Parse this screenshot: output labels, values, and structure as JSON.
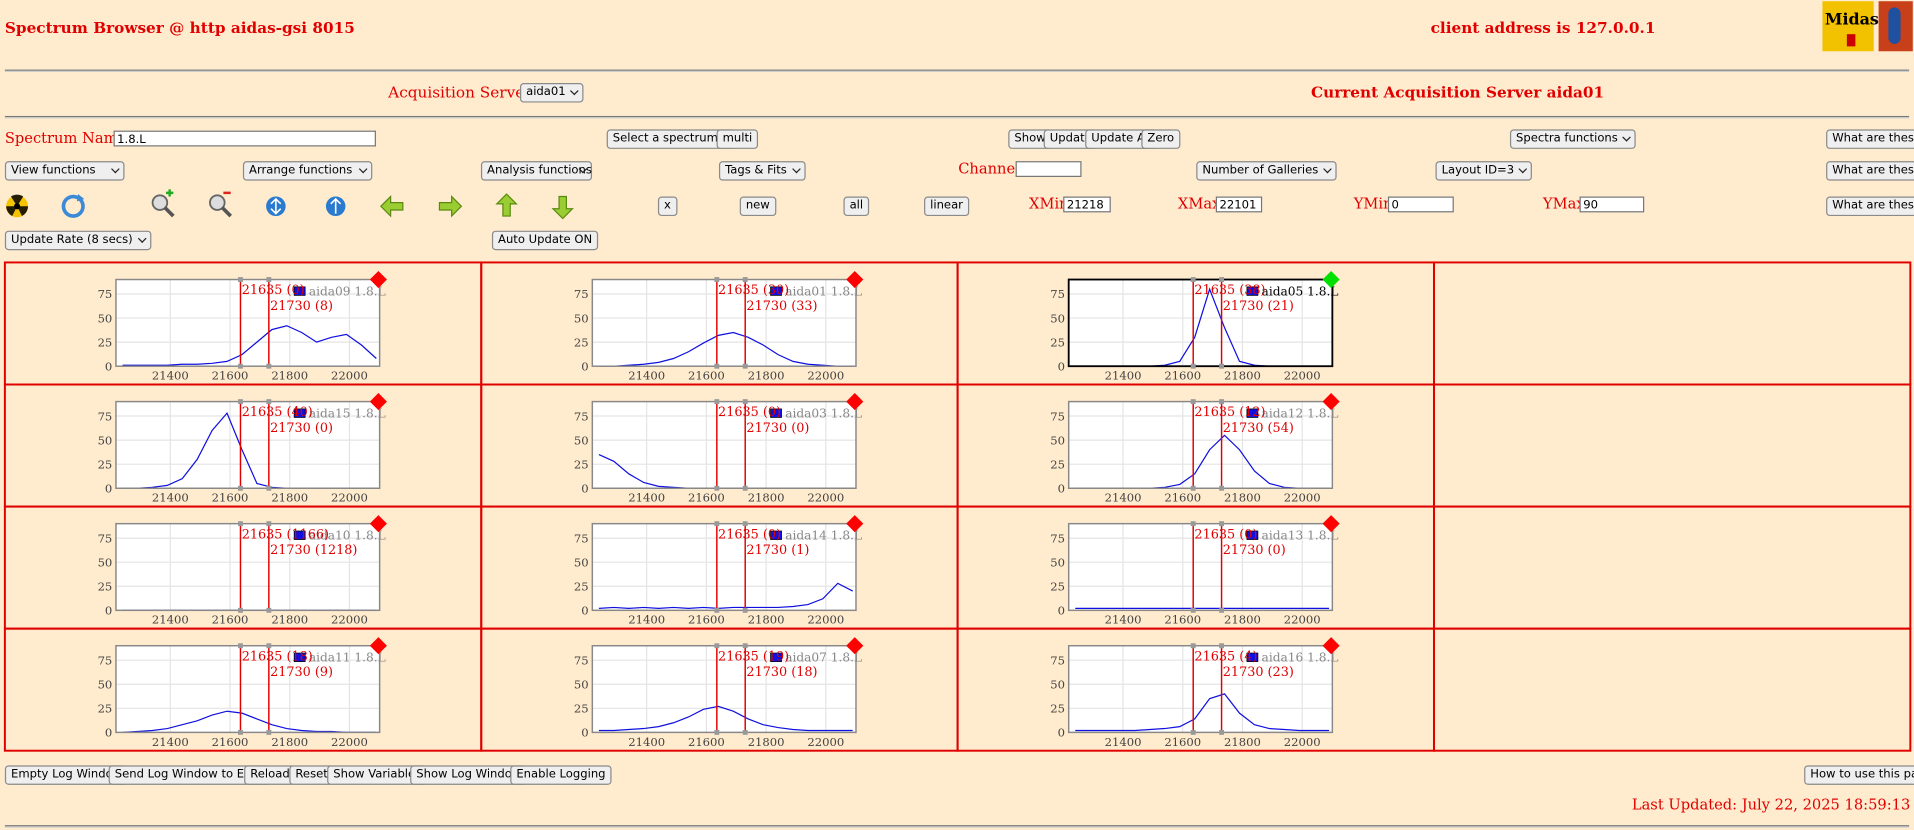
{
  "header": {
    "title": "Spectrum Browser @ http aidas-gsi 8015",
    "client": "client address is 127.0.0.1",
    "logo": "Midas"
  },
  "acquisition": {
    "label": "Acquisition Servers",
    "server": "aida01",
    "current": "Current Acquisition Server aida01"
  },
  "row1": {
    "spectrum_label": "Spectrum Name:",
    "spectrum_value": "1.8.L",
    "select_spectrum": "Select a spectrum",
    "multi": "multi",
    "show": "Show",
    "update": "Update",
    "update_all": "Update All",
    "zero": "Zero",
    "spectra_functions": "Spectra functions",
    "help": "What are these?"
  },
  "row2": {
    "view": "View functions",
    "arrange": "Arrange functions",
    "analysis": "Analysis functions",
    "tags": "Tags & Fits",
    "channel": "Channel:",
    "galleries": "Number of Galleries",
    "layout": "Layout ID=3",
    "help": "What are these?"
  },
  "row3": {
    "x": "x",
    "new": "new",
    "all": "all",
    "linear": "linear",
    "xmin": "XMin",
    "xmax": "XMax",
    "ymin": "YMin",
    "ymax": "YMax",
    "help": "What are these?"
  },
  "row4": {
    "rate": "Update Rate (8 secs)",
    "auto": "Auto Update ON"
  },
  "spectra": {
    "xlim": [
      21218,
      22101
    ],
    "ylim": [
      0,
      90
    ],
    "xticks": [
      21400,
      21600,
      21800,
      22000
    ],
    "yticks": [
      0,
      25,
      50,
      75
    ],
    "markers": [
      21635,
      21730
    ],
    "x": [
      21240,
      21290,
      21340,
      21390,
      21440,
      21490,
      21540,
      21590,
      21640,
      21690,
      21740,
      21790,
      21840,
      21890,
      21940,
      21990,
      22040,
      22090
    ],
    "panels": [
      {
        "name": "aida09 1.8.L",
        "labels": [
          "21635 (0)",
          "21730 (8)"
        ],
        "active": false,
        "status_color": "#ff0000",
        "values": [
          1,
          1,
          1,
          1,
          2,
          2,
          3,
          5,
          12,
          25,
          38,
          42,
          35,
          25,
          30,
          33,
          22,
          8
        ]
      },
      {
        "name": "aida01 1.8.L",
        "labels": [
          "21635 (30)",
          "21730 (33)"
        ],
        "active": false,
        "status_color": "#ff0000",
        "values": [
          0,
          0,
          1,
          2,
          4,
          8,
          15,
          24,
          32,
          35,
          30,
          22,
          12,
          5,
          2,
          1,
          0,
          0
        ]
      },
      {
        "name": "aida05 1.8.L",
        "labels": [
          "21635 (38)",
          "21730 (21)"
        ],
        "active": true,
        "status_color": "#00e000",
        "values": [
          0,
          0,
          0,
          0,
          0,
          0,
          1,
          5,
          30,
          80,
          40,
          5,
          1,
          0,
          0,
          0,
          0,
          0
        ]
      },
      {
        "name": "aida15 1.8.L",
        "labels": [
          "21635 (40)",
          "21730 (0)"
        ],
        "active": false,
        "status_color": "#ff0000",
        "values": [
          0,
          0,
          1,
          3,
          10,
          30,
          60,
          78,
          40,
          5,
          1,
          0,
          0,
          0,
          0,
          0,
          0,
          0
        ]
      },
      {
        "name": "aida03 1.8.L",
        "labels": [
          "21635 (0)",
          "21730 (0)"
        ],
        "active": false,
        "status_color": "#ff0000",
        "values": [
          35,
          28,
          15,
          6,
          2,
          1,
          0,
          0,
          0,
          0,
          0,
          0,
          0,
          0,
          0,
          0,
          0,
          0
        ]
      },
      {
        "name": "aida12 1.8.L",
        "labels": [
          "21635 (12)",
          "21730 (54)"
        ],
        "active": false,
        "status_color": "#ff0000",
        "values": [
          0,
          0,
          0,
          0,
          0,
          0,
          1,
          4,
          15,
          40,
          55,
          40,
          18,
          5,
          1,
          0,
          0,
          0
        ]
      },
      {
        "name": "aida10 1.8.L",
        "labels": [
          "21635 (1166)",
          "21730 (1218)"
        ],
        "active": false,
        "status_color": "#ff0000",
        "values": [
          0,
          0,
          0,
          0,
          0,
          0,
          0,
          0,
          0,
          0,
          0,
          0,
          0,
          0,
          0,
          0,
          0,
          0
        ]
      },
      {
        "name": "aida14 1.8.L",
        "labels": [
          "21635 (0)",
          "21730 (1)"
        ],
        "active": false,
        "status_color": "#ff0000",
        "values": [
          2,
          3,
          2,
          3,
          2,
          3,
          2,
          3,
          2,
          3,
          3,
          3,
          3,
          4,
          6,
          12,
          28,
          20
        ]
      },
      {
        "name": "aida13 1.8.L",
        "labels": [
          "21635 (0)",
          "21730 (0)"
        ],
        "active": false,
        "status_color": "#ff0000",
        "values": [
          2,
          2,
          2,
          2,
          2,
          2,
          2,
          2,
          2,
          2,
          2,
          2,
          2,
          2,
          2,
          2,
          2,
          2
        ]
      },
      {
        "name": "aida11 1.8.L",
        "labels": [
          "21635 (18)",
          "21730 (9)"
        ],
        "active": false,
        "status_color": "#ff0000",
        "values": [
          0,
          1,
          2,
          4,
          8,
          12,
          18,
          22,
          20,
          14,
          8,
          4,
          2,
          1,
          1,
          0,
          0,
          0
        ]
      },
      {
        "name": "aida07 1.8.L",
        "labels": [
          "21635 (19)",
          "21730 (18)"
        ],
        "active": false,
        "status_color": "#ff0000",
        "values": [
          2,
          2,
          3,
          4,
          6,
          10,
          16,
          24,
          27,
          22,
          14,
          8,
          5,
          3,
          2,
          2,
          2,
          2
        ]
      },
      {
        "name": "aida16 1.8.L",
        "labels": [
          "21635 (4)",
          "21730 (23)"
        ],
        "active": false,
        "status_color": "#ff0000",
        "values": [
          2,
          2,
          2,
          2,
          2,
          3,
          4,
          6,
          14,
          35,
          40,
          20,
          8,
          4,
          3,
          2,
          2,
          2
        ]
      }
    ]
  },
  "footer": {
    "buttons": [
      "Empty Log Window",
      "Send Log Window to ELog",
      "Reload",
      "Reset",
      "Show Variables",
      "Show Log Window",
      "Enable Logging"
    ],
    "help": "How to use this page",
    "updated": "Last Updated: July 22, 2025 18:59:13"
  }
}
